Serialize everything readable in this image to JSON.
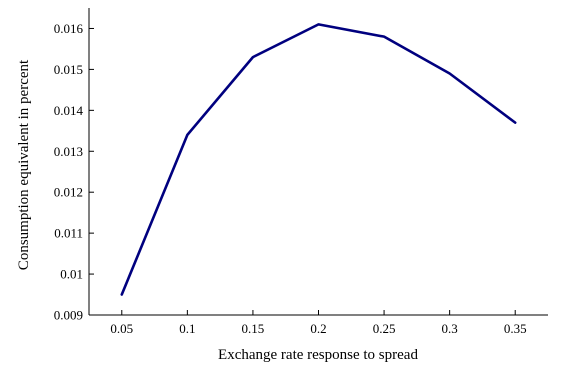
{
  "chart_data": {
    "type": "line",
    "title": "",
    "xlabel": "Exchange rate response to spread",
    "ylabel": "Consumption equivalent in percent",
    "x": [
      0.05,
      0.1,
      0.15,
      0.2,
      0.25,
      0.3,
      0.35
    ],
    "series": [
      {
        "values": [
          0.0095,
          0.0134,
          0.0153,
          0.0161,
          0.0158,
          0.0149,
          0.0137
        ]
      }
    ],
    "xlim": [
      0.025,
      0.375
    ],
    "ylim": [
      0.009,
      0.0165
    ],
    "xticks": [
      "0.05",
      "0.1",
      "0.15",
      "0.2",
      "0.25",
      "0.3",
      "0.35"
    ],
    "yticks": [
      "0.009",
      "0.01",
      "0.011",
      "0.012",
      "0.013",
      "0.014",
      "0.015",
      "0.016"
    ],
    "grid": false,
    "legend": "none",
    "colors": {
      "series": "#00007f",
      "axis": "#000000"
    }
  }
}
